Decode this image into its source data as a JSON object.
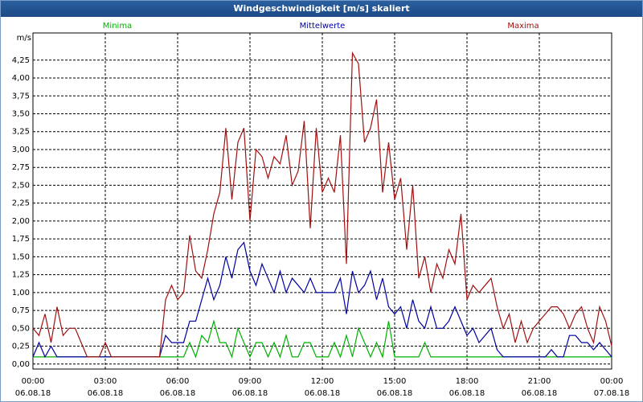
{
  "chart_data": {
    "type": "line",
    "title": "Windgeschwindigkeit [m/s] skaliert",
    "y_label": "m/s",
    "x": [
      0,
      0.25,
      0.5,
      0.75,
      1,
      1.25,
      1.5,
      1.75,
      2,
      2.25,
      2.5,
      2.75,
      3,
      3.25,
      3.5,
      3.75,
      4,
      4.25,
      4.5,
      4.75,
      5,
      5.25,
      5.5,
      5.75,
      6,
      6.25,
      6.5,
      6.75,
      7,
      7.25,
      7.5,
      7.75,
      8,
      8.25,
      8.5,
      8.75,
      9,
      9.25,
      9.5,
      9.75,
      10,
      10.25,
      10.5,
      10.75,
      11,
      11.25,
      11.5,
      11.75,
      12,
      12.25,
      12.5,
      12.75,
      13,
      13.25,
      13.5,
      13.75,
      14,
      14.25,
      14.5,
      14.75,
      15,
      15.25,
      15.5,
      15.75,
      16,
      16.25,
      16.5,
      16.75,
      17,
      17.25,
      17.5,
      17.75,
      18,
      18.25,
      18.5,
      18.75,
      19,
      19.25,
      19.5,
      19.75,
      20,
      20.25,
      20.5,
      20.75,
      21,
      21.25,
      21.5,
      21.75,
      22,
      22.25,
      22.5,
      22.75,
      23,
      23.25,
      23.5,
      23.75,
      24
    ],
    "series": [
      {
        "name": "Minima",
        "color": "#00b000",
        "values": [
          0.1,
          0.1,
          0.1,
          0.1,
          0.1,
          0.1,
          0.1,
          0.1,
          0.1,
          0.1,
          0.1,
          0.1,
          0.1,
          0.1,
          0.1,
          0.1,
          0.1,
          0.1,
          0.1,
          0.1,
          0.1,
          0.1,
          0.1,
          0.1,
          0.1,
          0.1,
          0.3,
          0.1,
          0.4,
          0.3,
          0.6,
          0.3,
          0.3,
          0.1,
          0.5,
          0.3,
          0.1,
          0.3,
          0.3,
          0.1,
          0.3,
          0.1,
          0.4,
          0.1,
          0.1,
          0.3,
          0.3,
          0.1,
          0.1,
          0.1,
          0.3,
          0.1,
          0.4,
          0.1,
          0.5,
          0.3,
          0.1,
          0.3,
          0.1,
          0.6,
          0.1,
          0.1,
          0.1,
          0.1,
          0.1,
          0.3,
          0.1,
          0.1,
          0.1,
          0.1,
          0.1,
          0.1,
          0.1,
          0.1,
          0.1,
          0.1,
          0.1,
          0.1,
          0.1,
          0.1,
          0.1,
          0.1,
          0.1,
          0.1,
          0.1,
          0.1,
          0.1,
          0.1,
          0.1,
          0.1,
          0.1,
          0.1,
          0.1,
          0.1,
          0.1,
          0.1,
          0.1
        ]
      },
      {
        "name": "Mittelwerte",
        "color": "#0000a0",
        "values": [
          0.1,
          0.3,
          0.1,
          0.25,
          0.1,
          0.1,
          0.1,
          0.1,
          0.1,
          0.1,
          0.1,
          0.1,
          0.1,
          0.1,
          0.1,
          0.1,
          0.1,
          0.1,
          0.1,
          0.1,
          0.1,
          0.1,
          0.4,
          0.3,
          0.3,
          0.3,
          0.6,
          0.6,
          0.9,
          1.2,
          0.9,
          1.1,
          1.5,
          1.2,
          1.6,
          1.7,
          1.3,
          1.1,
          1.4,
          1.2,
          1.0,
          1.3,
          1.0,
          1.2,
          1.1,
          1.0,
          1.2,
          1.0,
          1.0,
          1.0,
          1.0,
          1.2,
          0.7,
          1.3,
          1.0,
          1.1,
          1.3,
          0.9,
          1.2,
          0.8,
          0.7,
          0.8,
          0.5,
          0.9,
          0.6,
          0.5,
          0.8,
          0.5,
          0.5,
          0.6,
          0.8,
          0.6,
          0.4,
          0.5,
          0.3,
          0.4,
          0.5,
          0.2,
          0.1,
          0.1,
          0.1,
          0.1,
          0.1,
          0.1,
          0.1,
          0.1,
          0.2,
          0.1,
          0.1,
          0.4,
          0.4,
          0.3,
          0.3,
          0.2,
          0.3,
          0.2,
          0.1
        ]
      },
      {
        "name": "Maxima",
        "color": "#a01010",
        "values": [
          0.5,
          0.4,
          0.7,
          0.3,
          0.8,
          0.4,
          0.5,
          0.5,
          0.3,
          0.1,
          0.1,
          0.1,
          0.3,
          0.1,
          0.1,
          0.1,
          0.1,
          0.1,
          0.1,
          0.1,
          0.1,
          0.1,
          0.9,
          1.1,
          0.9,
          1.0,
          1.8,
          1.3,
          1.2,
          1.6,
          2.1,
          2.4,
          3.3,
          2.3,
          3.1,
          3.3,
          2.0,
          3.0,
          2.9,
          2.6,
          2.9,
          2.8,
          3.2,
          2.5,
          2.7,
          3.4,
          1.9,
          3.3,
          2.4,
          2.6,
          2.4,
          3.2,
          1.4,
          4.35,
          4.2,
          3.1,
          3.3,
          3.7,
          2.4,
          3.1,
          2.3,
          2.6,
          1.6,
          2.5,
          1.2,
          1.5,
          1.0,
          1.4,
          1.2,
          1.6,
          1.4,
          2.1,
          0.9,
          1.1,
          1.0,
          1.1,
          1.2,
          0.8,
          0.5,
          0.7,
          0.3,
          0.6,
          0.3,
          0.5,
          0.6,
          0.7,
          0.8,
          0.8,
          0.7,
          0.5,
          0.7,
          0.8,
          0.5,
          0.3,
          0.8,
          0.6,
          0.25
        ]
      }
    ],
    "xlim": [
      0,
      24
    ],
    "xticks": [
      {
        "value": 0,
        "label": "00:00\n06.08.18"
      },
      {
        "value": 3,
        "label": "03:00\n06.08.18"
      },
      {
        "value": 6,
        "label": "06:00\n06.08.18"
      },
      {
        "value": 9,
        "label": "09:00\n06.08.18"
      },
      {
        "value": 12,
        "label": "12:00\n06.08.18"
      },
      {
        "value": 15,
        "label": "15:00\n06.08.18"
      },
      {
        "value": 18,
        "label": "18:00\n06.08.18"
      },
      {
        "value": 21,
        "label": "21:00\n06.08.18"
      },
      {
        "value": 24,
        "label": "00:00\n07.08.18"
      }
    ],
    "ylim": [
      -0.07,
      4.63
    ],
    "yticks": [
      {
        "value": 0,
        "label": "0,00"
      },
      {
        "value": 0.25,
        "label": "0,25"
      },
      {
        "value": 0.5,
        "label": "0,50"
      },
      {
        "value": 0.75,
        "label": "0,75"
      },
      {
        "value": 1,
        "label": "1,00"
      },
      {
        "value": 1.25,
        "label": "1,25"
      },
      {
        "value": 1.5,
        "label": "1,50"
      },
      {
        "value": 1.75,
        "label": "1,75"
      },
      {
        "value": 2,
        "label": "2,00"
      },
      {
        "value": 2.25,
        "label": "2,25"
      },
      {
        "value": 2.5,
        "label": "2,50"
      },
      {
        "value": 2.75,
        "label": "2,75"
      },
      {
        "value": 3,
        "label": "3,00"
      },
      {
        "value": 3.25,
        "label": "3,25"
      },
      {
        "value": 3.5,
        "label": "3,50"
      },
      {
        "value": 3.75,
        "label": "3,75"
      },
      {
        "value": 4,
        "label": "4,00"
      },
      {
        "value": 4.25,
        "label": "4,25"
      }
    ],
    "grid": true
  }
}
